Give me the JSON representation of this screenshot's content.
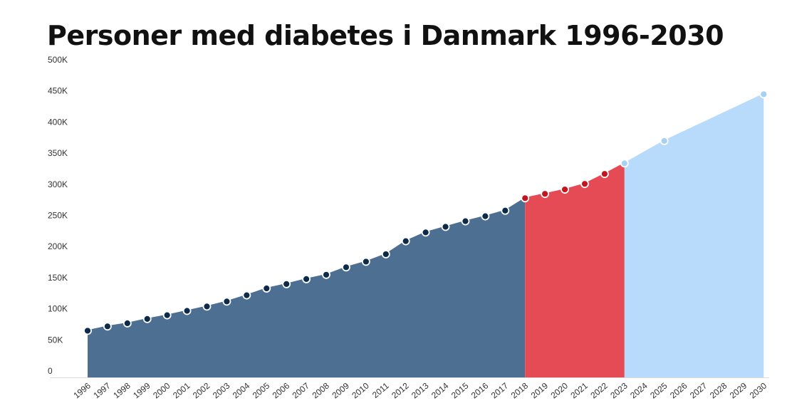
{
  "chart_data": {
    "type": "area",
    "title": "Personer med diabetes i Danmark 1996-2030",
    "xlabel": "",
    "ylabel": "",
    "ylim": [
      0,
      500000
    ],
    "y_ticks": [
      "0",
      "50K",
      "100K",
      "150K",
      "200K",
      "250K",
      "300K",
      "350K",
      "400K",
      "450K",
      "500K"
    ],
    "y_tick_values": [
      0,
      50000,
      100000,
      150000,
      200000,
      250000,
      300000,
      350000,
      400000,
      450000,
      500000
    ],
    "x_ticks": [
      "1996",
      "1997",
      "1998",
      "1999",
      "2000",
      "2001",
      "2002",
      "2003",
      "2004",
      "2005",
      "2006",
      "2007",
      "2008",
      "2009",
      "2010",
      "2011",
      "2012",
      "2013",
      "2014",
      "2015",
      "2016",
      "2017",
      "2018",
      "2019",
      "2020",
      "2021",
      "2022",
      "2023",
      "2024",
      "2025",
      "2026",
      "2027",
      "2028",
      "2029",
      "2030"
    ],
    "grid": false,
    "series": [
      {
        "color": "#4d6f92",
        "marker_color": "#0c2a4a",
        "points": [
          {
            "x": 1996,
            "y": 75000
          },
          {
            "x": 1997,
            "y": 82000
          },
          {
            "x": 1998,
            "y": 87000
          },
          {
            "x": 1999,
            "y": 94000
          },
          {
            "x": 2000,
            "y": 100000
          },
          {
            "x": 2001,
            "y": 107000
          },
          {
            "x": 2002,
            "y": 114000
          },
          {
            "x": 2003,
            "y": 122000
          },
          {
            "x": 2004,
            "y": 132000
          },
          {
            "x": 2005,
            "y": 143000
          },
          {
            "x": 2006,
            "y": 150000
          },
          {
            "x": 2007,
            "y": 158000
          },
          {
            "x": 2008,
            "y": 165000
          },
          {
            "x": 2009,
            "y": 177000
          },
          {
            "x": 2010,
            "y": 186000
          },
          {
            "x": 2011,
            "y": 198000
          },
          {
            "x": 2012,
            "y": 219000
          },
          {
            "x": 2013,
            "y": 233000
          },
          {
            "x": 2014,
            "y": 242000
          },
          {
            "x": 2015,
            "y": 251000
          },
          {
            "x": 2016,
            "y": 259000
          },
          {
            "x": 2017,
            "y": 268000
          },
          {
            "x": 2018,
            "y": 288000
          }
        ]
      },
      {
        "color": "#e54b55",
        "marker_color": "#c4141d",
        "points": [
          {
            "x": 2018,
            "y": 288000
          },
          {
            "x": 2019,
            "y": 295000
          },
          {
            "x": 2020,
            "y": 302000
          },
          {
            "x": 2021,
            "y": 311000
          },
          {
            "x": 2022,
            "y": 327000
          },
          {
            "x": 2023,
            "y": 344000
          }
        ]
      },
      {
        "color": "#b9dbfb",
        "marker_color": "#a7d0f4",
        "points": [
          {
            "x": 2023,
            "y": 344000
          },
          {
            "x": 2025,
            "y": 380000
          },
          {
            "x": 2030,
            "y": 455000
          }
        ]
      }
    ]
  }
}
